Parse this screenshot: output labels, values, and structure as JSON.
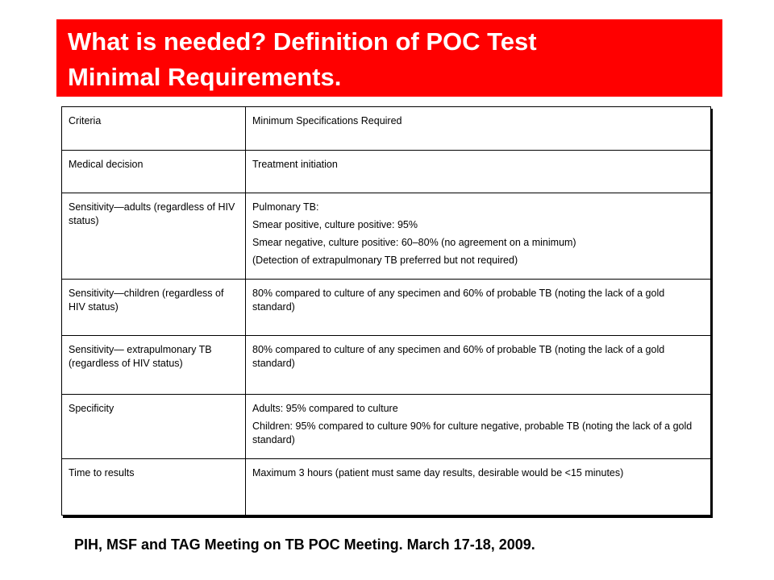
{
  "title": {
    "line1": "What is needed?  Definition of POC Test",
    "line2": "Minimal Requirements."
  },
  "table": {
    "header": {
      "criteria": "Criteria",
      "spec": "Minimum Specifications Required"
    },
    "rows": [
      {
        "criteria": "Medical decision",
        "spec": [
          "Treatment initiation"
        ]
      },
      {
        "criteria": "Sensitivity—adults (regardless of HIV status)",
        "spec": [
          "Pulmonary TB:",
          "Smear positive, culture positive: 95%",
          "Smear negative, culture positive: 60–80% (no agreement on a minimum)",
          "(Detection of extrapulmonary TB preferred but not required)"
        ]
      },
      {
        "criteria": "Sensitivity—children (regardless of HIV status)",
        "spec": [
          "80% compared to culture of any specimen and 60% of probable TB (noting the lack of a gold standard)"
        ]
      },
      {
        "criteria": "Sensitivity— extrapulmonary TB (regardless of HIV status)",
        "spec": [
          "80% compared to culture of any specimen and 60% of probable TB (noting the lack of a gold standard)"
        ]
      },
      {
        "criteria": "Specificity",
        "spec": [
          "Adults: 95% compared to culture",
          "Children: 95% compared to culture 90% for culture negative, probable TB (noting the lack of a gold standard)"
        ]
      },
      {
        "criteria": "Time to results",
        "spec": [
          "Maximum 3 hours (patient must same day results, desirable would be <15 minutes)"
        ]
      }
    ]
  },
  "footer": "PIH, MSF and TAG Meeting on TB POC Meeting.  March 17-18, 2009.",
  "colors": {
    "title_background": "#ff0000",
    "title_text": "#ffffff",
    "border": "#000000"
  }
}
